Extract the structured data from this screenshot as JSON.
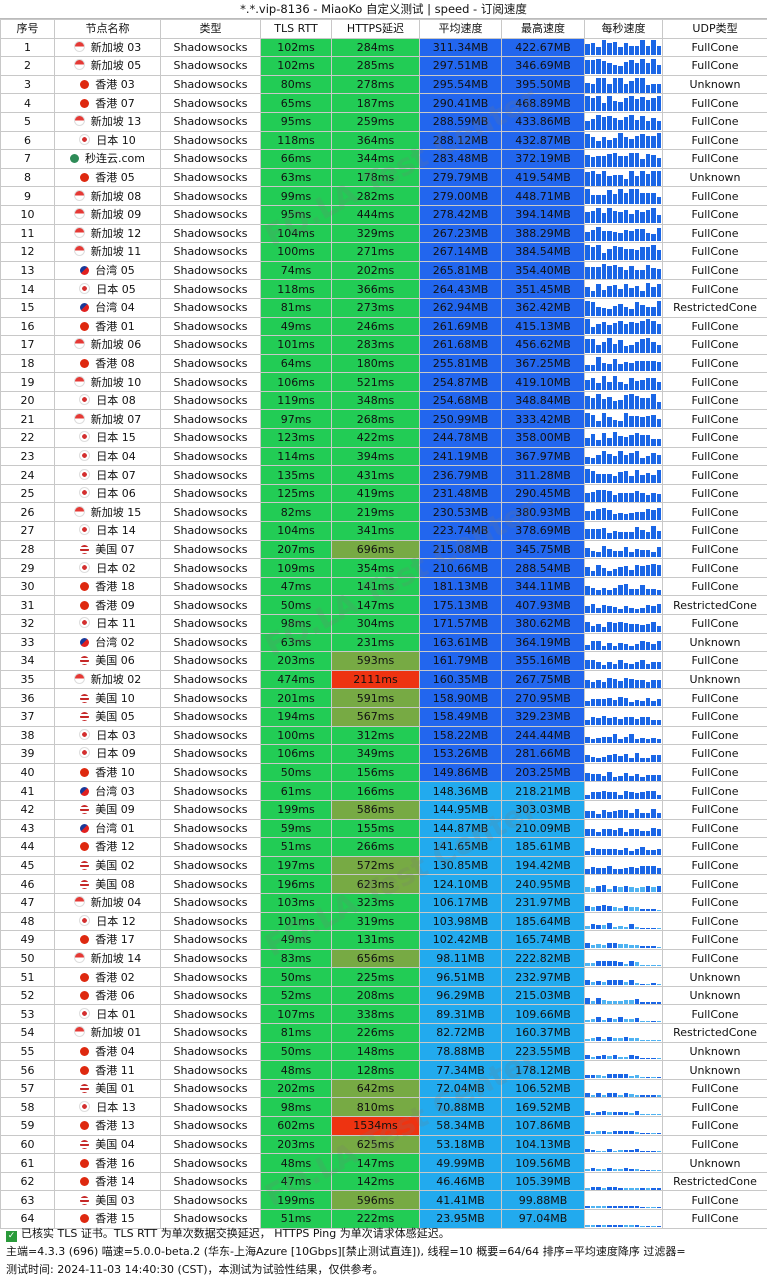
{
  "title": "*.*.vip-8136 - MiaoKo 自定义测试 | speed - 订阅速度",
  "headers": [
    "序号",
    "节点名称",
    "类型",
    "TLS RTT",
    "HTTPS延迟",
    "平均速度",
    "最高速度",
    "每秒速度",
    "UDP类型"
  ],
  "colors": {
    "tls_green": "#22cc55",
    "https_green": "#22cc55",
    "https_olive": "#77aa44",
    "https_red": "#ee3311",
    "speed_blue": "#2266ee",
    "speed_cyan": "#22aaee",
    "spark_blue": "#1a66e6",
    "spark_light": "#4fb3f2"
  },
  "rows": [
    {
      "idx": "1",
      "flag": "sg",
      "name": "新加坡 03",
      "type": "Shadowsocks",
      "tls": "102ms",
      "https": "284ms",
      "hc": "g",
      "avg": "311.34MB",
      "max": "422.67MB",
      "lvl": 0.98,
      "udp": "FullCone"
    },
    {
      "idx": "2",
      "flag": "sg",
      "name": "新加坡 05",
      "type": "Shadowsocks",
      "tls": "102ms",
      "https": "285ms",
      "hc": "g",
      "avg": "297.51MB",
      "max": "346.69MB",
      "lvl": 0.9,
      "udp": "FullCone"
    },
    {
      "idx": "3",
      "flag": "hk",
      "name": "香港 03",
      "type": "Shadowsocks",
      "tls": "80ms",
      "https": "278ms",
      "hc": "g",
      "avg": "295.54MB",
      "max": "395.50MB",
      "lvl": 0.9,
      "udp": "Unknown"
    },
    {
      "idx": "4",
      "flag": "hk",
      "name": "香港 07",
      "type": "Shadowsocks",
      "tls": "65ms",
      "https": "187ms",
      "hc": "g",
      "avg": "290.41MB",
      "max": "468.89MB",
      "lvl": 0.88,
      "udp": "FullCone"
    },
    {
      "idx": "5",
      "flag": "sg",
      "name": "新加坡 13",
      "type": "Shadowsocks",
      "tls": "95ms",
      "https": "259ms",
      "hc": "g",
      "avg": "288.59MB",
      "max": "433.86MB",
      "lvl": 0.88,
      "udp": "FullCone"
    },
    {
      "idx": "6",
      "flag": "jp",
      "name": "日本 10",
      "type": "Shadowsocks",
      "tls": "118ms",
      "https": "364ms",
      "hc": "g",
      "avg": "288.12MB",
      "max": "432.87MB",
      "lvl": 0.88,
      "udp": "FullCone"
    },
    {
      "idx": "7",
      "flag": "mo",
      "name": "秒连云.com",
      "type": "Shadowsocks",
      "tls": "66ms",
      "https": "344ms",
      "hc": "g",
      "avg": "283.48MB",
      "max": "372.19MB",
      "lvl": 0.86,
      "udp": "FullCone"
    },
    {
      "idx": "8",
      "flag": "hk",
      "name": "香港 05",
      "type": "Shadowsocks",
      "tls": "63ms",
      "https": "178ms",
      "hc": "g",
      "avg": "279.79MB",
      "max": "419.54MB",
      "lvl": 0.85,
      "udp": "Unknown"
    },
    {
      "idx": "9",
      "flag": "sg",
      "name": "新加坡 08",
      "type": "Shadowsocks",
      "tls": "99ms",
      "https": "282ms",
      "hc": "g",
      "avg": "279.00MB",
      "max": "448.71MB",
      "lvl": 0.85,
      "udp": "FullCone"
    },
    {
      "idx": "10",
      "flag": "sg",
      "name": "新加坡 09",
      "type": "Shadowsocks",
      "tls": "95ms",
      "https": "444ms",
      "hc": "g",
      "avg": "278.42MB",
      "max": "394.14MB",
      "lvl": 0.85,
      "udp": "FullCone"
    },
    {
      "idx": "11",
      "flag": "sg",
      "name": "新加坡 12",
      "type": "Shadowsocks",
      "tls": "104ms",
      "https": "329ms",
      "hc": "g",
      "avg": "267.23MB",
      "max": "388.29MB",
      "lvl": 0.82,
      "udp": "FullCone"
    },
    {
      "idx": "12",
      "flag": "sg",
      "name": "新加坡 11",
      "type": "Shadowsocks",
      "tls": "100ms",
      "https": "271ms",
      "hc": "g",
      "avg": "267.14MB",
      "max": "384.54MB",
      "lvl": 0.82,
      "udp": "FullCone"
    },
    {
      "idx": "13",
      "flag": "tw",
      "name": "台湾 05",
      "type": "Shadowsocks",
      "tls": "74ms",
      "https": "202ms",
      "hc": "g",
      "avg": "265.81MB",
      "max": "354.40MB",
      "lvl": 0.81,
      "udp": "FullCone"
    },
    {
      "idx": "14",
      "flag": "jp",
      "name": "日本 05",
      "type": "Shadowsocks",
      "tls": "118ms",
      "https": "366ms",
      "hc": "g",
      "avg": "264.43MB",
      "max": "351.45MB",
      "lvl": 0.8,
      "udp": "FullCone"
    },
    {
      "idx": "15",
      "flag": "tw",
      "name": "台湾 04",
      "type": "Shadowsocks",
      "tls": "81ms",
      "https": "273ms",
      "hc": "g",
      "avg": "262.94MB",
      "max": "362.42MB",
      "lvl": 0.8,
      "udp": "RestrictedCone"
    },
    {
      "idx": "16",
      "flag": "hk",
      "name": "香港 01",
      "type": "Shadowsocks",
      "tls": "49ms",
      "https": "246ms",
      "hc": "g",
      "avg": "261.69MB",
      "max": "415.13MB",
      "lvl": 0.8,
      "udp": "FullCone"
    },
    {
      "idx": "17",
      "flag": "sg",
      "name": "新加坡 06",
      "type": "Shadowsocks",
      "tls": "101ms",
      "https": "283ms",
      "hc": "g",
      "avg": "261.68MB",
      "max": "456.62MB",
      "lvl": 0.8,
      "udp": "FullCone"
    },
    {
      "idx": "18",
      "flag": "hk",
      "name": "香港 08",
      "type": "Shadowsocks",
      "tls": "64ms",
      "https": "180ms",
      "hc": "g",
      "avg": "255.81MB",
      "max": "367.25MB",
      "lvl": 0.78,
      "udp": "FullCone"
    },
    {
      "idx": "19",
      "flag": "sg",
      "name": "新加坡 10",
      "type": "Shadowsocks",
      "tls": "106ms",
      "https": "521ms",
      "hc": "g",
      "avg": "254.87MB",
      "max": "419.10MB",
      "lvl": 0.78,
      "udp": "FullCone"
    },
    {
      "idx": "20",
      "flag": "jp",
      "name": "日本 08",
      "type": "Shadowsocks",
      "tls": "119ms",
      "https": "348ms",
      "hc": "g",
      "avg": "254.68MB",
      "max": "348.84MB",
      "lvl": 0.78,
      "udp": "FullCone"
    },
    {
      "idx": "21",
      "flag": "sg",
      "name": "新加坡 07",
      "type": "Shadowsocks",
      "tls": "97ms",
      "https": "268ms",
      "hc": "g",
      "avg": "250.99MB",
      "max": "333.42MB",
      "lvl": 0.77,
      "udp": "FullCone"
    },
    {
      "idx": "22",
      "flag": "jp",
      "name": "日本 15",
      "type": "Shadowsocks",
      "tls": "123ms",
      "https": "422ms",
      "hc": "g",
      "avg": "244.78MB",
      "max": "358.00MB",
      "lvl": 0.75,
      "udp": "FullCone"
    },
    {
      "idx": "23",
      "flag": "jp",
      "name": "日本 04",
      "type": "Shadowsocks",
      "tls": "114ms",
      "https": "394ms",
      "hc": "g",
      "avg": "241.19MB",
      "max": "367.97MB",
      "lvl": 0.74,
      "udp": "FullCone"
    },
    {
      "idx": "24",
      "flag": "jp",
      "name": "日本 07",
      "type": "Shadowsocks",
      "tls": "135ms",
      "https": "431ms",
      "hc": "g",
      "avg": "236.79MB",
      "max": "311.28MB",
      "lvl": 0.72,
      "udp": "FullCone"
    },
    {
      "idx": "25",
      "flag": "jp",
      "name": "日本 06",
      "type": "Shadowsocks",
      "tls": "125ms",
      "https": "419ms",
      "hc": "g",
      "avg": "231.48MB",
      "max": "290.45MB",
      "lvl": 0.7,
      "udp": "FullCone"
    },
    {
      "idx": "26",
      "flag": "sg",
      "name": "新加坡 15",
      "type": "Shadowsocks",
      "tls": "82ms",
      "https": "219ms",
      "hc": "g",
      "avg": "230.53MB",
      "max": "380.93MB",
      "lvl": 0.7,
      "udp": "FullCone"
    },
    {
      "idx": "27",
      "flag": "jp",
      "name": "日本 14",
      "type": "Shadowsocks",
      "tls": "104ms",
      "https": "341ms",
      "hc": "g",
      "avg": "223.74MB",
      "max": "378.69MB",
      "lvl": 0.68,
      "udp": "FullCone"
    },
    {
      "idx": "28",
      "flag": "us",
      "name": "美国 07",
      "type": "Shadowsocks",
      "tls": "207ms",
      "https": "696ms",
      "hc": "o",
      "avg": "215.08MB",
      "max": "345.75MB",
      "lvl": 0.66,
      "udp": "FullCone"
    },
    {
      "idx": "29",
      "flag": "jp",
      "name": "日本 02",
      "type": "Shadowsocks",
      "tls": "109ms",
      "https": "354ms",
      "hc": "g",
      "avg": "210.66MB",
      "max": "288.54MB",
      "lvl": 0.64,
      "udp": "FullCone"
    },
    {
      "idx": "30",
      "flag": "hk",
      "name": "香港 18",
      "type": "Shadowsocks",
      "tls": "47ms",
      "https": "141ms",
      "hc": "g",
      "avg": "181.13MB",
      "max": "344.11MB",
      "lvl": 0.55,
      "udp": "FullCone"
    },
    {
      "idx": "31",
      "flag": "hk",
      "name": "香港 09",
      "type": "Shadowsocks",
      "tls": "50ms",
      "https": "147ms",
      "hc": "g",
      "avg": "175.13MB",
      "max": "407.93MB",
      "lvl": 0.53,
      "udp": "RestrictedCone"
    },
    {
      "idx": "32",
      "flag": "jp",
      "name": "日本 11",
      "type": "Shadowsocks",
      "tls": "98ms",
      "https": "304ms",
      "hc": "g",
      "avg": "171.57MB",
      "max": "380.62MB",
      "lvl": 0.52,
      "udp": "FullCone"
    },
    {
      "idx": "33",
      "flag": "tw",
      "name": "台湾 02",
      "type": "Shadowsocks",
      "tls": "63ms",
      "https": "231ms",
      "hc": "g",
      "avg": "163.61MB",
      "max": "364.19MB",
      "lvl": 0.5,
      "udp": "Unknown"
    },
    {
      "idx": "34",
      "flag": "us",
      "name": "美国 06",
      "type": "Shadowsocks",
      "tls": "203ms",
      "https": "593ms",
      "hc": "o",
      "avg": "161.79MB",
      "max": "355.16MB",
      "lvl": 0.49,
      "udp": "FullCone"
    },
    {
      "idx": "35",
      "flag": "sg",
      "name": "新加坡 02",
      "type": "Shadowsocks",
      "tls": "474ms",
      "https": "2111ms",
      "hc": "r",
      "avg": "160.35MB",
      "max": "267.75MB",
      "lvl": 0.49,
      "udp": "Unknown"
    },
    {
      "idx": "36",
      "flag": "us",
      "name": "美国 10",
      "type": "Shadowsocks",
      "tls": "201ms",
      "https": "591ms",
      "hc": "o",
      "avg": "158.90MB",
      "max": "270.95MB",
      "lvl": 0.48,
      "udp": "FullCone"
    },
    {
      "idx": "37",
      "flag": "us",
      "name": "美国 05",
      "type": "Shadowsocks",
      "tls": "194ms",
      "https": "567ms",
      "hc": "o",
      "avg": "158.49MB",
      "max": "329.23MB",
      "lvl": 0.48,
      "udp": "FullCone"
    },
    {
      "idx": "38",
      "flag": "jp",
      "name": "日本 03",
      "type": "Shadowsocks",
      "tls": "100ms",
      "https": "312ms",
      "hc": "g",
      "avg": "158.22MB",
      "max": "244.44MB",
      "lvl": 0.48,
      "udp": "FullCone"
    },
    {
      "idx": "39",
      "flag": "jp",
      "name": "日本 09",
      "type": "Shadowsocks",
      "tls": "106ms",
      "https": "349ms",
      "hc": "g",
      "avg": "153.26MB",
      "max": "281.66MB",
      "lvl": 0.47,
      "udp": "FullCone"
    },
    {
      "idx": "40",
      "flag": "hk",
      "name": "香港 10",
      "type": "Shadowsocks",
      "tls": "50ms",
      "https": "156ms",
      "hc": "g",
      "avg": "149.86MB",
      "max": "203.25MB",
      "lvl": 0.46,
      "udp": "FullCone"
    },
    {
      "idx": "41",
      "flag": "tw",
      "name": "台湾 03",
      "type": "Shadowsocks",
      "tls": "61ms",
      "https": "166ms",
      "hc": "g",
      "avg": "148.36MB",
      "max": "218.21MB",
      "lvl": 0.45,
      "udp": "FullCone"
    },
    {
      "idx": "42",
      "flag": "us",
      "name": "美国 09",
      "type": "Shadowsocks",
      "tls": "199ms",
      "https": "586ms",
      "hc": "o",
      "avg": "144.95MB",
      "max": "303.03MB",
      "lvl": 0.44,
      "udp": "FullCone"
    },
    {
      "idx": "43",
      "flag": "tw",
      "name": "台湾 01",
      "type": "Shadowsocks",
      "tls": "59ms",
      "https": "155ms",
      "hc": "g",
      "avg": "144.87MB",
      "max": "210.09MB",
      "lvl": 0.44,
      "udp": "FullCone"
    },
    {
      "idx": "44",
      "flag": "hk",
      "name": "香港 12",
      "type": "Shadowsocks",
      "tls": "51ms",
      "https": "266ms",
      "hc": "g",
      "avg": "141.65MB",
      "max": "185.61MB",
      "lvl": 0.43,
      "udp": "FullCone"
    },
    {
      "idx": "45",
      "flag": "us",
      "name": "美国 02",
      "type": "Shadowsocks",
      "tls": "197ms",
      "https": "572ms",
      "hc": "o",
      "avg": "130.85MB",
      "max": "194.42MB",
      "lvl": 0.4,
      "udp": "FullCone"
    },
    {
      "idx": "46",
      "flag": "us",
      "name": "美国 08",
      "type": "Shadowsocks",
      "tls": "196ms",
      "https": "623ms",
      "hc": "o",
      "avg": "124.10MB",
      "max": "240.95MB",
      "lvl": 0.38,
      "udp": "FullCone"
    },
    {
      "idx": "47",
      "flag": "sg",
      "name": "新加坡 04",
      "type": "Shadowsocks",
      "tls": "103ms",
      "https": "323ms",
      "hc": "g",
      "avg": "106.17MB",
      "max": "231.97MB",
      "lvl": 0.32,
      "udp": "FullCone"
    },
    {
      "idx": "48",
      "flag": "jp",
      "name": "日本 12",
      "type": "Shadowsocks",
      "tls": "101ms",
      "https": "319ms",
      "hc": "g",
      "avg": "103.98MB",
      "max": "185.64MB",
      "lvl": 0.32,
      "udp": "FullCone"
    },
    {
      "idx": "49",
      "flag": "hk",
      "name": "香港 17",
      "type": "Shadowsocks",
      "tls": "49ms",
      "https": "131ms",
      "hc": "g",
      "avg": "102.42MB",
      "max": "165.74MB",
      "lvl": 0.31,
      "udp": "FullCone"
    },
    {
      "idx": "50",
      "flag": "sg",
      "name": "新加坡 14",
      "type": "Shadowsocks",
      "tls": "83ms",
      "https": "656ms",
      "hc": "o",
      "avg": "98.11MB",
      "max": "222.82MB",
      "lvl": 0.3,
      "udp": "FullCone"
    },
    {
      "idx": "51",
      "flag": "hk",
      "name": "香港 02",
      "type": "Shadowsocks",
      "tls": "50ms",
      "https": "225ms",
      "hc": "g",
      "avg": "96.51MB",
      "max": "232.97MB",
      "lvl": 0.29,
      "udp": "Unknown"
    },
    {
      "idx": "52",
      "flag": "hk",
      "name": "香港 06",
      "type": "Shadowsocks",
      "tls": "52ms",
      "https": "208ms",
      "hc": "g",
      "avg": "96.29MB",
      "max": "215.03MB",
      "lvl": 0.29,
      "udp": "Unknown"
    },
    {
      "idx": "53",
      "flag": "jp",
      "name": "日本 01",
      "type": "Shadowsocks",
      "tls": "107ms",
      "https": "338ms",
      "hc": "g",
      "avg": "89.31MB",
      "max": "109.66MB",
      "lvl": 0.27,
      "udp": "FullCone"
    },
    {
      "idx": "54",
      "flag": "sg",
      "name": "新加坡 01",
      "type": "Shadowsocks",
      "tls": "81ms",
      "https": "226ms",
      "hc": "g",
      "avg": "82.72MB",
      "max": "160.37MB",
      "lvl": 0.25,
      "udp": "RestrictedCone"
    },
    {
      "idx": "55",
      "flag": "hk",
      "name": "香港 04",
      "type": "Shadowsocks",
      "tls": "50ms",
      "https": "148ms",
      "hc": "g",
      "avg": "78.88MB",
      "max": "223.55MB",
      "lvl": 0.24,
      "udp": "Unknown"
    },
    {
      "idx": "56",
      "flag": "hk",
      "name": "香港 11",
      "type": "Shadowsocks",
      "tls": "48ms",
      "https": "128ms",
      "hc": "g",
      "avg": "77.34MB",
      "max": "178.12MB",
      "lvl": 0.24,
      "udp": "Unknown"
    },
    {
      "idx": "57",
      "flag": "us",
      "name": "美国 01",
      "type": "Shadowsocks",
      "tls": "202ms",
      "https": "642ms",
      "hc": "o",
      "avg": "72.04MB",
      "max": "106.52MB",
      "lvl": 0.22,
      "udp": "FullCone"
    },
    {
      "idx": "58",
      "flag": "jp",
      "name": "日本 13",
      "type": "Shadowsocks",
      "tls": "98ms",
      "https": "810ms",
      "hc": "o",
      "avg": "70.88MB",
      "max": "169.52MB",
      "lvl": 0.22,
      "udp": "FullCone"
    },
    {
      "idx": "59",
      "flag": "hk",
      "name": "香港 13",
      "type": "Shadowsocks",
      "tls": "602ms",
      "https": "1534ms",
      "hc": "r",
      "avg": "58.34MB",
      "max": "107.86MB",
      "lvl": 0.18,
      "udp": "FullCone"
    },
    {
      "idx": "60",
      "flag": "us",
      "name": "美国 04",
      "type": "Shadowsocks",
      "tls": "203ms",
      "https": "625ms",
      "hc": "o",
      "avg": "53.18MB",
      "max": "104.13MB",
      "lvl": 0.16,
      "udp": "FullCone"
    },
    {
      "idx": "61",
      "flag": "hk",
      "name": "香港 16",
      "type": "Shadowsocks",
      "tls": "48ms",
      "https": "147ms",
      "hc": "g",
      "avg": "49.99MB",
      "max": "109.56MB",
      "lvl": 0.15,
      "udp": "Unknown"
    },
    {
      "idx": "62",
      "flag": "hk",
      "name": "香港 14",
      "type": "Shadowsocks",
      "tls": "47ms",
      "https": "142ms",
      "hc": "g",
      "avg": "46.46MB",
      "max": "105.39MB",
      "lvl": 0.14,
      "udp": "RestrictedCone"
    },
    {
      "idx": "63",
      "flag": "us",
      "name": "美国 03",
      "type": "Shadowsocks",
      "tls": "199ms",
      "https": "596ms",
      "hc": "o",
      "avg": "41.41MB",
      "max": "99.88MB",
      "lvl": 0.13,
      "udp": "FullCone"
    },
    {
      "idx": "64",
      "flag": "hk",
      "name": "香港 15",
      "type": "Shadowsocks",
      "tls": "51ms",
      "https": "222ms",
      "hc": "g",
      "avg": "23.95MB",
      "max": "97.04MB",
      "lvl": 0.07,
      "udp": "FullCone"
    }
  ],
  "footer": {
    "line1": "已核实 TLS 证书。TLS RTT 为单次数据交换延迟，  HTTPS Ping 为单次请求体感延迟。",
    "line2": "主端=4.3.3 (696) 喵速=5.0.0-beta.2 (华东-上海Azure [10Gbps][禁止测试直连]), 线程=10 概要=64/64 排序=平均速度降序 过滤器=",
    "line3": "测试时间:  2024-11-03 14:40:30 (CST)，本测试为试验性结果，仅供参考。"
  },
  "watermark": "FQ.LA Test Center"
}
